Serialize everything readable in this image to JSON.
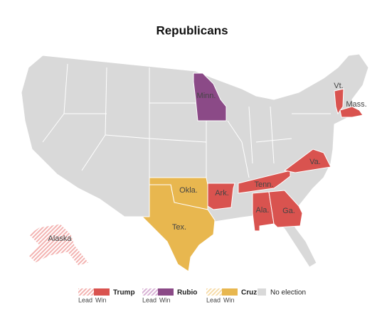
{
  "title": "Republicans",
  "candidates": [
    {
      "name": "Trump",
      "win_color": "#d9534f",
      "lead_color": "#f3b3b1",
      "lead_label": "Lead",
      "win_label": "Win"
    },
    {
      "name": "Rubio",
      "win_color": "#8b4a87",
      "lead_color": "#d9b3d6",
      "lead_label": "Lead",
      "win_label": "Win"
    },
    {
      "name": "Cruz",
      "win_color": "#e8b74f",
      "lead_color": "#f6dcaa",
      "lead_label": "Lead",
      "win_label": "Win"
    }
  ],
  "no_election": {
    "label": "No election",
    "color": "#d9d9d9"
  },
  "states": [
    {
      "name": "Minn.",
      "candidate": "Rubio",
      "status": "win"
    },
    {
      "name": "Okla.",
      "candidate": "Cruz",
      "status": "win"
    },
    {
      "name": "Tex.",
      "candidate": "Cruz",
      "status": "win"
    },
    {
      "name": "Ark.",
      "candidate": "Trump",
      "status": "win"
    },
    {
      "name": "Tenn.",
      "candidate": "Trump",
      "status": "win"
    },
    {
      "name": "Ala.",
      "candidate": "Trump",
      "status": "win"
    },
    {
      "name": "Ga.",
      "candidate": "Trump",
      "status": "win"
    },
    {
      "name": "Va.",
      "candidate": "Trump",
      "status": "win"
    },
    {
      "name": "Vt.",
      "candidate": "Trump",
      "status": "win"
    },
    {
      "name": "Mass.",
      "candidate": "Trump",
      "status": "win"
    },
    {
      "name": "Alaska",
      "candidate": "Trump",
      "status": "lead"
    }
  ]
}
